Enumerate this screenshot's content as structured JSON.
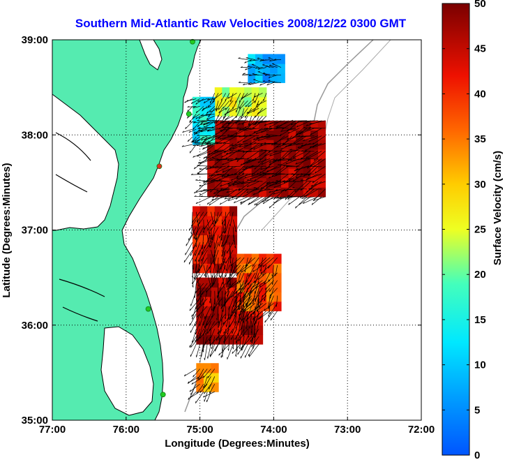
{
  "chart_data": {
    "type": "heatmap",
    "title": "Southern Mid-Atlantic Raw Velocities 2008/12/22 0300 GMT",
    "xlabel": "Longitude (Degrees:Minutes)",
    "ylabel": "Latitude (Degrees:Minutes)",
    "xlim": [
      -77,
      -72
    ],
    "ylim": [
      35,
      39
    ],
    "x_ticks": [
      -77,
      -76,
      -75,
      -74,
      -73,
      -72
    ],
    "x_tick_labels": [
      "77:00",
      "76:00",
      "75:00",
      "74:00",
      "73:00",
      "72:00"
    ],
    "y_ticks": [
      35,
      36,
      37,
      38,
      39
    ],
    "y_tick_labels": [
      "35:00",
      "36:00",
      "37:00",
      "38:00",
      "39:00"
    ],
    "grid": true,
    "colorbar": {
      "label": "Surface Velocity (cm/s)",
      "range": [
        0,
        50
      ],
      "ticks": [
        0,
        5,
        10,
        15,
        20,
        25,
        30,
        35,
        40,
        45,
        50
      ],
      "tick_labels": [
        "0",
        "5",
        "10",
        "15",
        "20",
        "25",
        "30",
        "35",
        "40",
        "45",
        "50"
      ]
    },
    "velocity_regions": [
      {
        "lon": [
          -74.9,
          -73.3
        ],
        "lat": [
          37.35,
          38.15
        ],
        "speed": 48
      },
      {
        "lon": [
          -75.1,
          -74.55
        ],
        "lat": [
          36.55,
          37.25
        ],
        "speed": 44
      },
      {
        "lon": [
          -75.05,
          -74.2
        ],
        "lat": [
          35.8,
          36.45
        ],
        "speed": 46
      },
      {
        "lon": [
          -74.5,
          -73.95
        ],
        "lat": [
          36.15,
          36.75
        ],
        "speed": 38
      },
      {
        "lon": [
          -74.8,
          -74.1
        ],
        "lat": [
          38.2,
          38.5
        ],
        "speed": 24
      },
      {
        "lon": [
          -75.1,
          -74.8
        ],
        "lat": [
          37.9,
          38.4
        ],
        "speed": 14
      },
      {
        "lon": [
          -74.35,
          -73.9
        ],
        "lat": [
          38.55,
          38.8
        ],
        "speed": 8
      },
      {
        "lon": [
          -75.05,
          -74.8
        ],
        "lat": [
          35.3,
          35.6
        ],
        "speed": 34
      }
    ],
    "site_markers": [
      {
        "lon": -75.1,
        "lat": 38.98,
        "color": "#22cc22"
      },
      {
        "lon": -75.15,
        "lat": 38.22,
        "color": "#22cc22"
      },
      {
        "lon": -75.55,
        "lat": 37.67,
        "color": "#e03020"
      },
      {
        "lon": -75.7,
        "lat": 36.17,
        "color": "#22cc22"
      },
      {
        "lon": -75.5,
        "lat": 35.27,
        "color": "#22cc22"
      }
    ],
    "colors": {
      "land": "#55ebb0",
      "coast": "#000000",
      "isobath": "#999999",
      "title": "#0000ff"
    }
  }
}
